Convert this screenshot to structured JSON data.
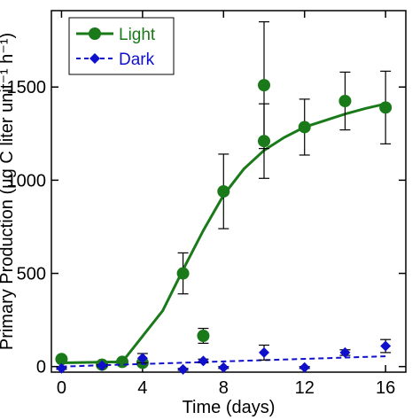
{
  "chart_data": {
    "type": "line",
    "xlabel": "Time (days)",
    "ylabel": "Primary Production (μg C liter unit⁻¹ h⁻¹)",
    "xlim": [
      -0.5,
      17
    ],
    "ylim": [
      -30,
      1910
    ],
    "x_ticks": [
      0,
      4,
      8,
      12,
      16
    ],
    "y_ticks": [
      0,
      500,
      1000,
      1500
    ],
    "grid": false,
    "legend_position": "top-left",
    "series": [
      {
        "name": "Light",
        "color": "#1a7a1a",
        "marker": "circle",
        "line_style": "solid",
        "points": [
          {
            "x": 0,
            "y": 40,
            "err": 10
          },
          {
            "x": 2,
            "y": 10,
            "err": 5
          },
          {
            "x": 3,
            "y": 25,
            "err": 10
          },
          {
            "x": 4,
            "y": 20,
            "err": 10
          },
          {
            "x": 6,
            "y": 500,
            "err": 110
          },
          {
            "x": 7,
            "y": 165,
            "err": 40
          },
          {
            "x": 8,
            "y": 940,
            "err": 200
          },
          {
            "x": 10,
            "y": 1510,
            "err": 340
          },
          {
            "x": 10,
            "y": 1210,
            "err": 200
          },
          {
            "x": 12,
            "y": 1285,
            "err": 150
          },
          {
            "x": 14,
            "y": 1425,
            "err": 155
          },
          {
            "x": 16,
            "y": 1390,
            "err": 195
          }
        ],
        "fit": [
          {
            "x": 0,
            "y": 20
          },
          {
            "x": 3,
            "y": 25
          },
          {
            "x": 5,
            "y": 300
          },
          {
            "x": 6,
            "y": 520
          },
          {
            "x": 7,
            "y": 730
          },
          {
            "x": 8,
            "y": 920
          },
          {
            "x": 9,
            "y": 1060
          },
          {
            "x": 10,
            "y": 1160
          },
          {
            "x": 11,
            "y": 1230
          },
          {
            "x": 12,
            "y": 1285
          },
          {
            "x": 13,
            "y": 1320
          },
          {
            "x": 14,
            "y": 1355
          },
          {
            "x": 15,
            "y": 1385
          },
          {
            "x": 16,
            "y": 1410
          }
        ]
      },
      {
        "name": "Dark",
        "color": "#1010cc",
        "marker": "diamond",
        "line_style": "dashed",
        "points": [
          {
            "x": 0,
            "y": -10,
            "err": 5
          },
          {
            "x": 2,
            "y": 5,
            "err": 5
          },
          {
            "x": 4,
            "y": 45,
            "err": 25
          },
          {
            "x": 6,
            "y": -15,
            "err": 5
          },
          {
            "x": 7,
            "y": 30,
            "err": 10
          },
          {
            "x": 8,
            "y": -5,
            "err": 5
          },
          {
            "x": 10,
            "y": 75,
            "err": 40
          },
          {
            "x": 12,
            "y": -5,
            "err": 5
          },
          {
            "x": 14,
            "y": 75,
            "err": 15
          },
          {
            "x": 16,
            "y": 110,
            "err": 35
          }
        ],
        "fit": [
          {
            "x": 0,
            "y": 0
          },
          {
            "x": 16,
            "y": 55
          }
        ]
      }
    ]
  }
}
